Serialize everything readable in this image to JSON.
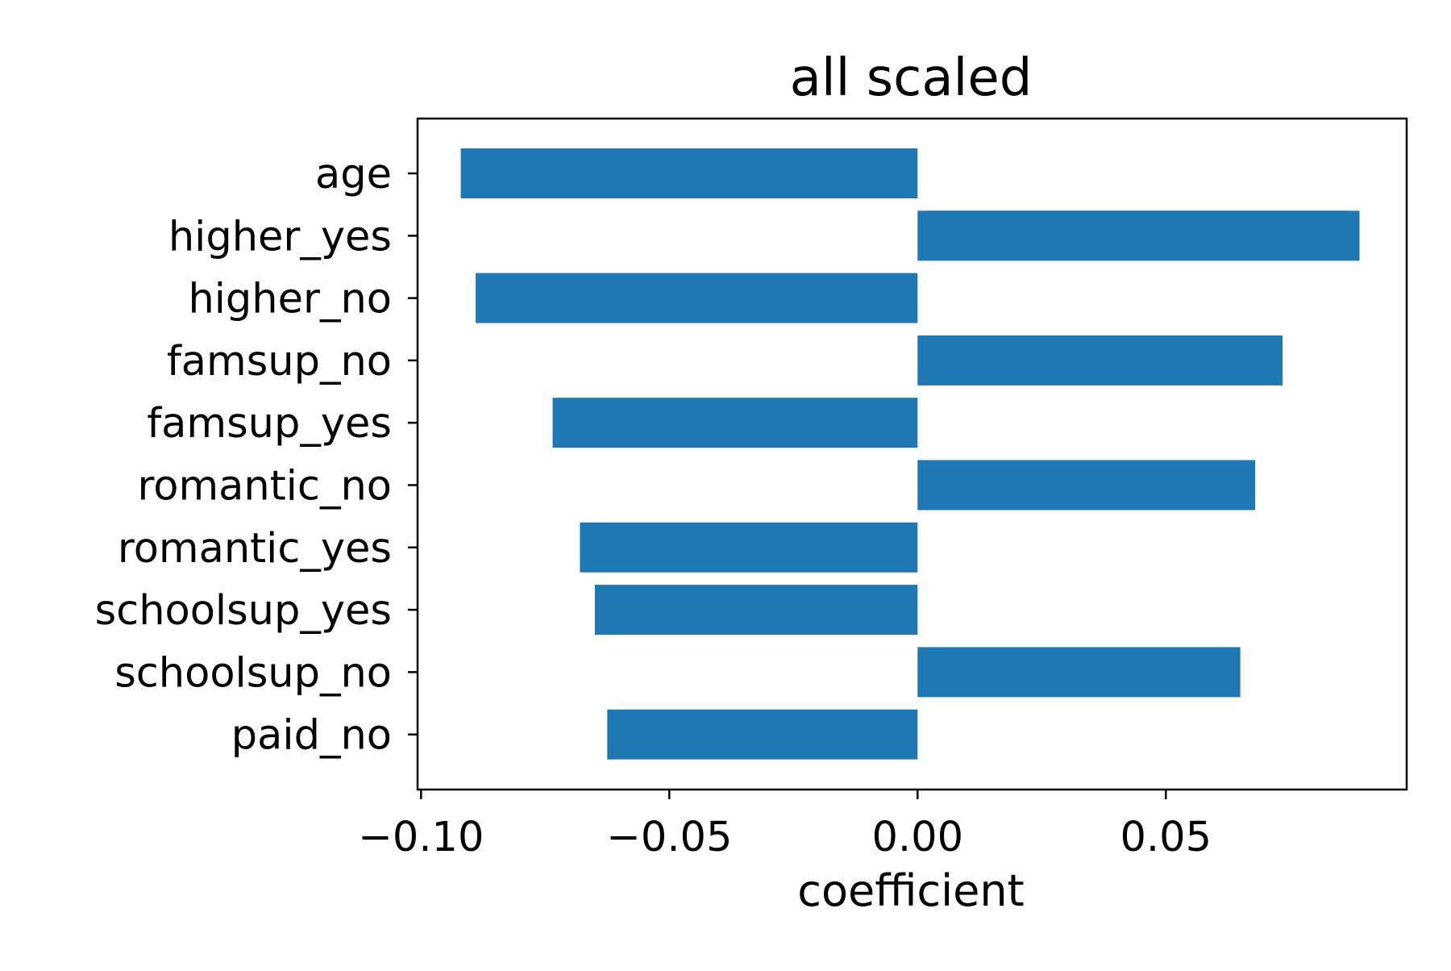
{
  "chart_data": {
    "type": "bar",
    "orientation": "horizontal",
    "title": "all scaled",
    "xlabel": "coefficient",
    "ylabel": "",
    "xlim": [
      -0.1007,
      0.0985
    ],
    "xticks": [
      -0.1,
      -0.05,
      0.0,
      0.05
    ],
    "xtick_labels": [
      "−0.10",
      "−0.05",
      "0.00",
      "0.05"
    ],
    "categories": [
      "age",
      "higher_yes",
      "higher_no",
      "famsup_no",
      "famsup_yes",
      "romantic_no",
      "romantic_yes",
      "schoolsup_yes",
      "schoolsup_no",
      "paid_no"
    ],
    "values": [
      -0.092,
      0.089,
      -0.089,
      0.0735,
      -0.0735,
      0.068,
      -0.068,
      -0.065,
      0.065,
      -0.0625
    ],
    "bar_color": "#1f77b4",
    "grid": false,
    "legend": false
  }
}
